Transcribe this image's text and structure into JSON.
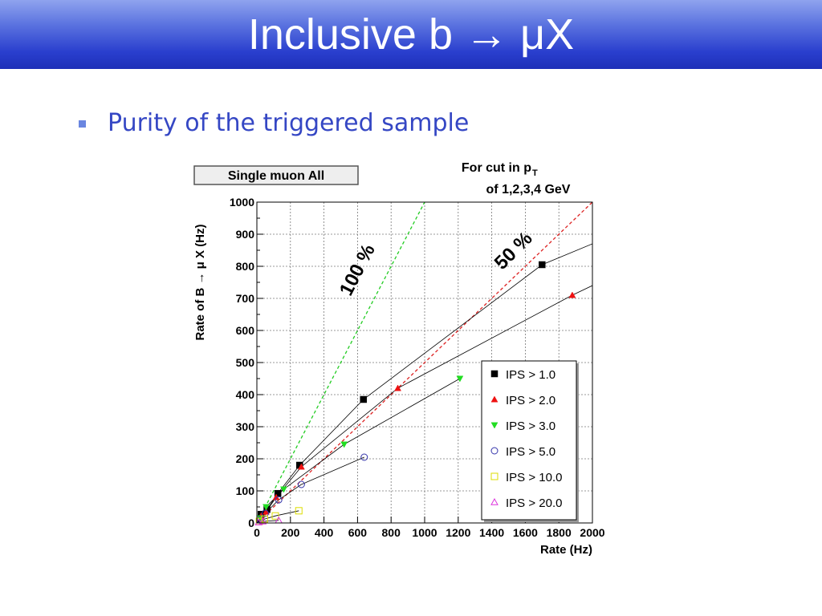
{
  "slide": {
    "title": "Inclusive b → μX",
    "bullet": "Purity of the triggered sample"
  },
  "chart_data": {
    "type": "scatter",
    "title": "Single muon All",
    "annotation_lines": [
      "For cut in p",
      "T",
      "of 1,2,3,4 GeV"
    ],
    "xlabel": "Rate (Hz)",
    "ylabel": "Rate of B → μ X (Hz)",
    "xlim": [
      0,
      2000
    ],
    "ylim": [
      0,
      1000
    ],
    "xticks": [
      0,
      200,
      400,
      600,
      800,
      1000,
      1200,
      1400,
      1600,
      1800,
      2000
    ],
    "yticks": [
      0,
      100,
      200,
      300,
      400,
      500,
      600,
      700,
      800,
      900,
      1000
    ],
    "grid": true,
    "legend_position": "right",
    "reference_lines": [
      {
        "label": "100 %",
        "slope": 1.0,
        "color": "#22cc22"
      },
      {
        "label": "50 %",
        "slope": 0.5,
        "color": "#dd2222"
      }
    ],
    "reference_label_colors": [
      "#22bb22",
      "#ee6600"
    ],
    "series": [
      {
        "name": "IPS > 1.0",
        "marker": "square-filled",
        "color": "#000000",
        "points": [
          [
            25,
            27
          ],
          [
            60,
            42
          ],
          [
            125,
            92
          ],
          [
            255,
            180
          ],
          [
            635,
            385
          ],
          [
            1700,
            805
          ]
        ],
        "curve_end": [
          2000,
          870
        ]
      },
      {
        "name": "IPS > 2.0",
        "marker": "triangle-up-filled",
        "color": "#ee1111",
        "points": [
          [
            25,
            22
          ],
          [
            55,
            35
          ],
          [
            115,
            80
          ],
          [
            265,
            175
          ],
          [
            840,
            420
          ],
          [
            1880,
            710
          ]
        ],
        "curve_end": [
          2000,
          740
        ]
      },
      {
        "name": "IPS > 3.0",
        "marker": "triangle-down-filled",
        "color": "#22dd22",
        "points": [
          [
            20,
            15
          ],
          [
            55,
            50
          ],
          [
            160,
            105
          ],
          [
            520,
            245
          ],
          [
            1210,
            450
          ]
        ],
        "curve_end": [
          1210,
          450
        ]
      },
      {
        "name": "IPS > 5.0",
        "marker": "circle-open",
        "color": "#3333aa",
        "points": [
          [
            20,
            10
          ],
          [
            50,
            30
          ],
          [
            130,
            72
          ],
          [
            265,
            120
          ],
          [
            640,
            205
          ]
        ],
        "curve_end": [
          640,
          205
        ]
      },
      {
        "name": "IPS > 10.0",
        "marker": "square-open",
        "color": "#dddd00",
        "points": [
          [
            15,
            5
          ],
          [
            45,
            12
          ],
          [
            110,
            22
          ],
          [
            250,
            38
          ]
        ],
        "curve_end": [
          250,
          38
        ]
      },
      {
        "name": "IPS > 20.0",
        "marker": "triangle-up-open",
        "color": "#dd33dd",
        "points": [
          [
            10,
            2
          ],
          [
            35,
            5
          ],
          [
            130,
            8
          ]
        ],
        "curve_end": [
          130,
          8
        ]
      }
    ]
  }
}
